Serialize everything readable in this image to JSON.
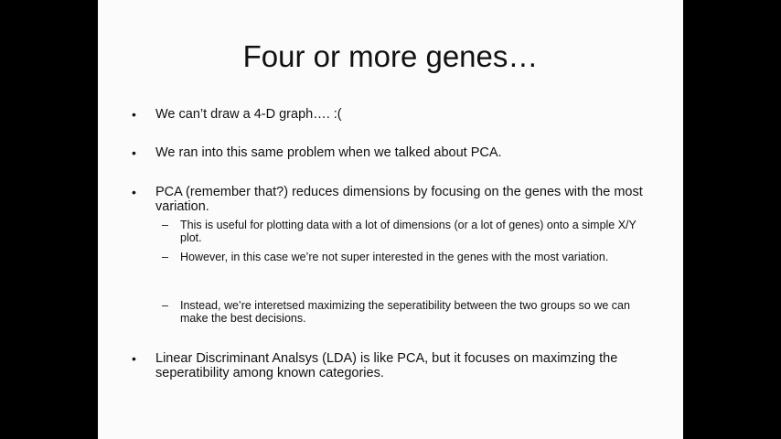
{
  "slide": {
    "title": "Four or more genes…",
    "bullet_marker": "•",
    "sub_marker": "–",
    "bullets": [
      {
        "text": "We can’t draw a 4-D graph…. :("
      },
      {
        "text": "We ran into this same problem when we talked about PCA."
      },
      {
        "text": "PCA (remember that?) reduces dimensions by focusing on the genes with the most variation."
      },
      {
        "text": "Linear Discriminant Analsys (LDA) is like PCA, but it focuses on maximzing the seperatibility among known categories."
      }
    ],
    "subbullets": [
      {
        "text": "This is useful for plotting data with a lot of dimensions (or a lot of genes) onto a simple X/Y plot."
      },
      {
        "text": "However, in this case we’re not super interested in the genes with the most variation."
      },
      {
        "text": "Instead, we’re interetsed maximizing the seperatibility between the two groups so we can make the best decisions."
      }
    ]
  }
}
